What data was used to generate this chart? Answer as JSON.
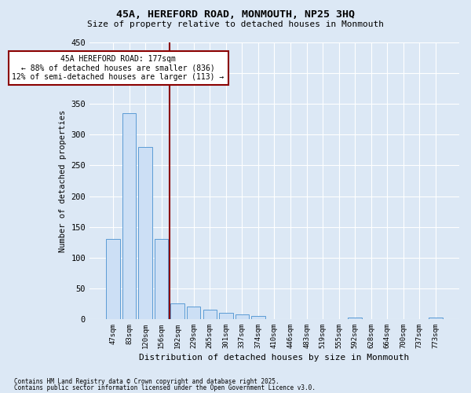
{
  "title_line1": "45A, HEREFORD ROAD, MONMOUTH, NP25 3HQ",
  "title_line2": "Size of property relative to detached houses in Monmouth",
  "xlabel": "Distribution of detached houses by size in Monmouth",
  "ylabel": "Number of detached properties",
  "categories": [
    "47sqm",
    "83sqm",
    "120sqm",
    "156sqm",
    "192sqm",
    "229sqm",
    "265sqm",
    "301sqm",
    "337sqm",
    "374sqm",
    "410sqm",
    "446sqm",
    "483sqm",
    "519sqm",
    "555sqm",
    "592sqm",
    "628sqm",
    "664sqm",
    "700sqm",
    "737sqm",
    "773sqm"
  ],
  "values": [
    130,
    335,
    280,
    130,
    25,
    20,
    15,
    10,
    8,
    5,
    0,
    0,
    0,
    0,
    0,
    2,
    0,
    0,
    0,
    0,
    2
  ],
  "bar_color": "#ccdff5",
  "bar_edge_color": "#5b9bd5",
  "background_color": "#dce8f5",
  "grid_color": "#ffffff",
  "ylim": [
    0,
    450
  ],
  "yticks": [
    0,
    50,
    100,
    150,
    200,
    250,
    300,
    350,
    400,
    450
  ],
  "vline_x_index": 3,
  "vline_color": "#8b0000",
  "annotation_text": "45A HEREFORD ROAD: 177sqm\n← 88% of detached houses are smaller (836)\n12% of semi-detached houses are larger (113) →",
  "annotation_box_color": "#ffffff",
  "annotation_edge_color": "#8b0000",
  "footnote1": "Contains HM Land Registry data © Crown copyright and database right 2025.",
  "footnote2": "Contains public sector information licensed under the Open Government Licence v3.0."
}
